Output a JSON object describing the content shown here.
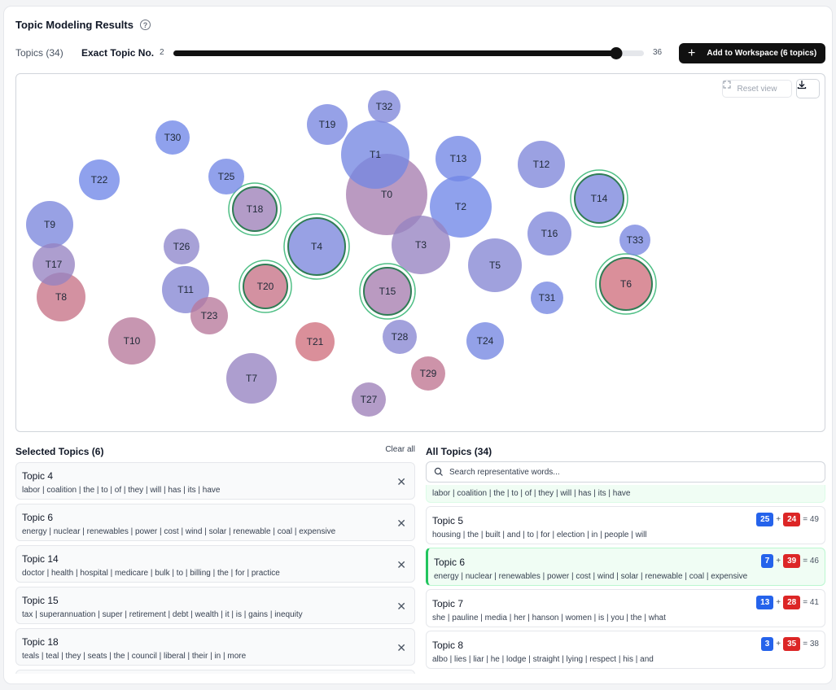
{
  "title": "Topic Modeling Results",
  "help_icon": "?",
  "controls": {
    "topics_count": "Topics (34)",
    "exact_label": "Exact Topic No.",
    "range_min": "2",
    "range_max": "36",
    "min_value": 2,
    "max_value": 36,
    "current_value": 34,
    "add_button_label": "Add to Workspace (6 topics)"
  },
  "plot": {
    "reset_label": "Reset view",
    "icons": [
      "expand-icon",
      "download-icon"
    ],
    "colors": {
      "blue": "#6f86e8",
      "red": "#e06a6a",
      "purple": "#8e86cc",
      "selected_ring": "#4fbf85"
    },
    "bubbles": [
      {
        "label": "T0",
        "mix": 0.65,
        "selected": false
      },
      {
        "label": "T1",
        "mix": 0.1,
        "selected": false
      },
      {
        "label": "T2",
        "mix": 0.0,
        "selected": false
      },
      {
        "label": "T3",
        "mix": 0.55,
        "selected": false
      },
      {
        "label": "T4",
        "mix": 0.2,
        "selected": true
      },
      {
        "label": "T5",
        "mix": 0.35,
        "selected": false
      },
      {
        "label": "T6",
        "mix": 0.9,
        "selected": true
      },
      {
        "label": "T7",
        "mix": 0.55,
        "selected": false
      },
      {
        "label": "T8",
        "mix": 0.85,
        "selected": false
      },
      {
        "label": "T9",
        "mix": 0.2,
        "selected": false
      },
      {
        "label": "T10",
        "mix": 0.75,
        "selected": false
      },
      {
        "label": "T11",
        "mix": 0.35,
        "selected": false
      },
      {
        "label": "T12",
        "mix": 0.25,
        "selected": false
      },
      {
        "label": "T13",
        "mix": 0.05,
        "selected": false
      },
      {
        "label": "T14",
        "mix": 0.2,
        "selected": true
      },
      {
        "label": "T15",
        "mix": 0.65,
        "selected": true
      },
      {
        "label": "T16",
        "mix": 0.25,
        "selected": false
      },
      {
        "label": "T17",
        "mix": 0.55,
        "selected": false
      },
      {
        "label": "T18",
        "mix": 0.6,
        "selected": true
      },
      {
        "label": "T19",
        "mix": 0.15,
        "selected": false
      },
      {
        "label": "T20",
        "mix": 0.85,
        "selected": true
      },
      {
        "label": "T21",
        "mix": 0.9,
        "selected": false
      },
      {
        "label": "T22",
        "mix": 0.0,
        "selected": false
      },
      {
        "label": "T23",
        "mix": 0.75,
        "selected": false
      },
      {
        "label": "T24",
        "mix": 0.1,
        "selected": false
      },
      {
        "label": "T25",
        "mix": 0.05,
        "selected": false
      },
      {
        "label": "T26",
        "mix": 0.5,
        "selected": false
      },
      {
        "label": "T27",
        "mix": 0.6,
        "selected": false
      },
      {
        "label": "T28",
        "mix": 0.4,
        "selected": false
      },
      {
        "label": "T29",
        "mix": 0.8,
        "selected": false
      },
      {
        "label": "T30",
        "mix": 0.0,
        "selected": false
      },
      {
        "label": "T31",
        "mix": 0.1,
        "selected": false
      },
      {
        "label": "T32",
        "mix": 0.25,
        "selected": false
      },
      {
        "label": "T33",
        "mix": 0.15,
        "selected": false
      }
    ]
  },
  "selected": {
    "title": "Selected Topics (6)",
    "clear_label": "Clear all",
    "items": [
      {
        "name": "Topic 4",
        "words": "labor | coalition | the | to | of | they | will | has | its | have"
      },
      {
        "name": "Topic 6",
        "words": "energy | nuclear | renewables | power | cost | wind | solar | renewable | coal | expensive"
      },
      {
        "name": "Topic 14",
        "words": "doctor | health | hospital | medicare | bulk | to | billing | the | for | practice"
      },
      {
        "name": "Topic 15",
        "words": "tax | superannuation | super | retirement | debt | wealth | it | is | gains | inequity"
      },
      {
        "name": "Topic 18",
        "words": "teals | teal | they | seats | the | council | liberal | their | in | more"
      }
    ]
  },
  "all_topics": {
    "title": "All Topics (34)",
    "search_placeholder": "Search representative words...",
    "partial_item_words": "labor | coalition | the | to | of | they | will | has | its | have",
    "items": [
      {
        "name": "Topic 5",
        "words": "housing | the | built | and | to | for | election | in | people | will",
        "blue": "25",
        "red": "24",
        "total": "= 49",
        "selected": false
      },
      {
        "name": "Topic 6",
        "words": "energy | nuclear | renewables | power | cost | wind | solar | renewable | coal | expensive",
        "blue": "7",
        "red": "39",
        "total": "= 46",
        "selected": true
      },
      {
        "name": "Topic 7",
        "words": "she | pauline | media | her | hanson | women | is | you | the | what",
        "blue": "13",
        "red": "28",
        "total": "= 41",
        "selected": false
      },
      {
        "name": "Topic 8",
        "words": "albo | lies | liar | he | lodge | straight | lying | respect | his | and",
        "blue": "3",
        "red": "35",
        "total": "= 38",
        "selected": false
      }
    ]
  }
}
